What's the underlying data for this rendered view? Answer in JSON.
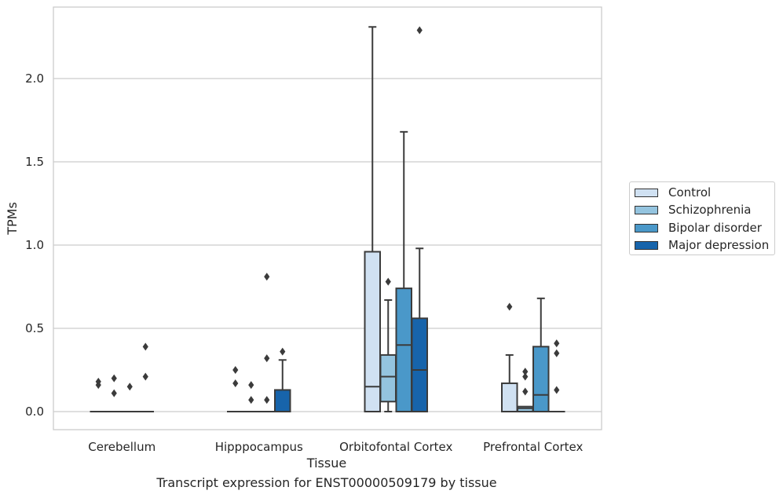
{
  "chart_data": {
    "type": "box",
    "title": "",
    "caption": "Transcript expression for ENST00000509179 by tissue",
    "xlabel": "Tissue",
    "ylabel": "TPMs",
    "ylim": [
      -0.11,
      2.43
    ],
    "yticks": [
      0.0,
      0.5,
      1.0,
      1.5,
      2.0
    ],
    "ytick_labels": [
      "0.0",
      "0.5",
      "1.0",
      "1.5",
      "2.0"
    ],
    "grid": "horizontal",
    "legend_position": "right",
    "categories": [
      "Cerebellum",
      "Hipppocampus",
      "Orbitofontal Cortex",
      "Prefrontal Cortex"
    ],
    "series": [
      {
        "name": "Control",
        "color": "#d0e1f2",
        "boxes": [
          {
            "q1": 0,
            "median": 0,
            "q3": 0,
            "whislo": 0,
            "whishi": 0,
            "fliers": [
              0.16,
              0.18
            ]
          },
          {
            "q1": 0,
            "median": 0,
            "q3": 0,
            "whislo": 0,
            "whishi": 0,
            "fliers": [
              0.17,
              0.25
            ]
          },
          {
            "q1": 0,
            "median": 0.15,
            "q3": 0.96,
            "whislo": 0,
            "whishi": 2.31,
            "fliers": []
          },
          {
            "q1": 0,
            "median": 0,
            "q3": 0.17,
            "whislo": 0,
            "whishi": 0.34,
            "fliers": [
              0.63
            ]
          }
        ]
      },
      {
        "name": "Schizophrenia",
        "color": "#94c4df",
        "boxes": [
          {
            "q1": 0,
            "median": 0,
            "q3": 0,
            "whislo": 0,
            "whishi": 0,
            "fliers": [
              0.11,
              0.2
            ]
          },
          {
            "q1": 0,
            "median": 0,
            "q3": 0,
            "whislo": 0,
            "whishi": 0,
            "fliers": [
              0.07,
              0.16
            ]
          },
          {
            "q1": 0.06,
            "median": 0.21,
            "q3": 0.34,
            "whislo": 0,
            "whishi": 0.67,
            "fliers": [
              0.78
            ]
          },
          {
            "q1": 0,
            "median": 0.02,
            "q3": 0.03,
            "whislo": 0,
            "whishi": 0.03,
            "fliers": [
              0.12,
              0.21,
              0.24
            ]
          }
        ]
      },
      {
        "name": "Bipolar disorder",
        "color": "#4a98c9",
        "boxes": [
          {
            "q1": 0,
            "median": 0,
            "q3": 0,
            "whislo": 0,
            "whishi": 0,
            "fliers": [
              0.15
            ]
          },
          {
            "q1": 0,
            "median": 0,
            "q3": 0,
            "whislo": 0,
            "whishi": 0,
            "fliers": [
              0.07,
              0.32,
              0.81
            ]
          },
          {
            "q1": 0,
            "median": 0.4,
            "q3": 0.74,
            "whislo": 0,
            "whishi": 1.68,
            "fliers": []
          },
          {
            "q1": 0,
            "median": 0.1,
            "q3": 0.39,
            "whislo": 0,
            "whishi": 0.68,
            "fliers": []
          }
        ]
      },
      {
        "name": "Major depression",
        "color": "#1764ab",
        "boxes": [
          {
            "q1": 0,
            "median": 0,
            "q3": 0,
            "whislo": 0,
            "whishi": 0,
            "fliers": [
              0.21,
              0.39
            ]
          },
          {
            "q1": 0,
            "median": 0,
            "q3": 0.13,
            "whislo": 0,
            "whishi": 0.31,
            "fliers": [
              0.36
            ]
          },
          {
            "q1": 0,
            "median": 0.25,
            "q3": 0.56,
            "whislo": 0,
            "whishi": 0.98,
            "fliers": [
              2.29
            ]
          },
          {
            "q1": 0,
            "median": 0,
            "q3": 0,
            "whislo": 0,
            "whishi": 0,
            "fliers": [
              0.13,
              0.35,
              0.41
            ]
          }
        ]
      }
    ]
  }
}
